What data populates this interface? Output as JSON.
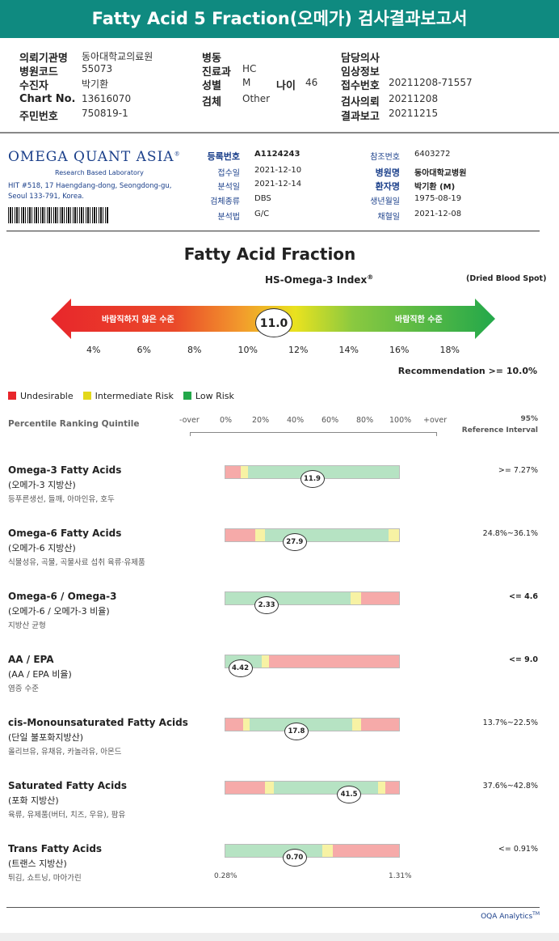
{
  "header": {
    "title": "Fatty Acid 5 Fraction(오메가) 검사결과보고서"
  },
  "patient_info": {
    "col1": [
      {
        "label": "의뢰기관명",
        "value": "동아대학교의료원"
      },
      {
        "label": "병원코드",
        "value": "55073"
      },
      {
        "label": "수진자",
        "value": "박기환"
      },
      {
        "label": "Chart No.",
        "value": "13616070"
      },
      {
        "label": "주민번호",
        "value": "750819-1"
      }
    ],
    "col2": [
      {
        "label": "병동",
        "value": ""
      },
      {
        "label": "진료과",
        "value": "HC"
      },
      {
        "label": "성별",
        "value": "M"
      },
      {
        "label": "검체",
        "value": "Other"
      }
    ],
    "age_label": "나이",
    "age_value": "46",
    "col3": [
      {
        "label": "담당의사",
        "value": ""
      },
      {
        "label": "임상정보",
        "value": ""
      },
      {
        "label": "접수번호",
        "value": "20211208-71557"
      },
      {
        "label": "검사의뢰",
        "value": "20211208"
      },
      {
        "label": "결과보고",
        "value": "20211215"
      }
    ]
  },
  "lab": {
    "logo_text": "OMEGA QUANT ASIA",
    "logo_mark": "®",
    "logo_sub": "Research Based Laboratory",
    "address": "HIT #518, 17 Haengdang-dong, Seongdong-gu, Seoul 133-791, Korea."
  },
  "sample_info": {
    "left": [
      {
        "label": "등록번호",
        "value": "A1124243"
      },
      {
        "label": "접수일",
        "value": "2021-12-10"
      },
      {
        "label": "분석일",
        "value": "2021-12-14"
      },
      {
        "label": "검체종류",
        "value": "DBS"
      },
      {
        "label": "분석법",
        "value": "G/C"
      }
    ],
    "right": [
      {
        "label": "참조번호",
        "value": "6403272"
      },
      {
        "label": "병원명",
        "value": "동아대학교병원"
      },
      {
        "label": "환자명",
        "value": "박기환 (M)"
      },
      {
        "label": "생년월일",
        "value": "1975-08-19"
      },
      {
        "label": "채혈일",
        "value": "2021-12-08"
      }
    ]
  },
  "fraction": {
    "title": "Fatty Acid Fraction",
    "index_label": "HS-Omega-3 Index",
    "index_mark": "®",
    "specimen": "(Dried Blood Spot)",
    "low_label": "바람직하지 않은 수준",
    "high_label": "바람직한 수준",
    "value": 11.0,
    "value_text": "11.0",
    "ticks": [
      "4%",
      "6%",
      "8%",
      "10%",
      "12%",
      "14%",
      "16%",
      "18%"
    ],
    "recommendation": "Recommendation  >= 10.0%"
  },
  "legend": [
    {
      "label": "Undesirable",
      "color": "#e8262b"
    },
    {
      "label": "Intermediate Risk",
      "color": "#e3d81a"
    },
    {
      "label": "Low Risk",
      "color": "#23a84a"
    }
  ],
  "percentile": {
    "label": "Percentile Ranking Quintile",
    "ticks": [
      "-over",
      "0%",
      "20%",
      "40%",
      "60%",
      "80%",
      "100%",
      "+over"
    ],
    "ref_header_1": "95%",
    "ref_header_2": "Reference Interval"
  },
  "rows": [
    {
      "en": "Omega-3 Fatty Acids",
      "ko": "(오메가-3 지방산)",
      "foods": "등푸른생선, 들깨, 아마인유, 호두",
      "value_text": "11.9",
      "marker_pct": 0.5,
      "ref": ">= 7.27%",
      "ref_bold": false,
      "segments": [
        {
          "w": 0.09,
          "c": "#f6aaa9"
        },
        {
          "w": 0.04,
          "c": "#f7f2a4"
        },
        {
          "w": 0.87,
          "c": "#b6e3c3"
        }
      ]
    },
    {
      "en": "Omega-6 Fatty Acids",
      "ko": "(오메가-6 지방산)",
      "foods": "식물성유, 곡물, 곡물사료 섭취 육류·유제품",
      "value_text": "27.9",
      "marker_pct": 0.4,
      "ref": "24.8%~36.1%",
      "ref_bold": false,
      "segments": [
        {
          "w": 0.17,
          "c": "#f6aaa9"
        },
        {
          "w": 0.06,
          "c": "#f7f2a4"
        },
        {
          "w": 0.71,
          "c": "#b6e3c3"
        },
        {
          "w": 0.06,
          "c": "#f7f2a4"
        }
      ]
    },
    {
      "en": "Omega-6 / Omega-3",
      "ko": "(오메가-6 / 오메가-3 비율)",
      "foods": "지방산 균형",
      "value_text": "2.33",
      "marker_pct": 0.24,
      "ref": "<= 4.6",
      "ref_bold": true,
      "segments": [
        {
          "w": 0.72,
          "c": "#b6e3c3"
        },
        {
          "w": 0.06,
          "c": "#f7f2a4"
        },
        {
          "w": 0.22,
          "c": "#f6aaa9"
        }
      ]
    },
    {
      "en": "AA / EPA",
      "ko": "(AA / EPA 비율)",
      "foods": "염증 수준",
      "value_text": "4.42",
      "marker_pct": 0.09,
      "ref": "<= 9.0",
      "ref_bold": true,
      "segments": [
        {
          "w": 0.21,
          "c": "#b6e3c3"
        },
        {
          "w": 0.04,
          "c": "#f7f2a4"
        },
        {
          "w": 0.75,
          "c": "#f6aaa9"
        }
      ]
    },
    {
      "en": "cis-Monounsaturated Fatty Acids",
      "ko": "(단일 불포화지방산)",
      "foods": "올리브유, 유채유, 카놀라유, 아몬드",
      "value_text": "17.8",
      "marker_pct": 0.41,
      "ref": "13.7%~22.5%",
      "ref_bold": false,
      "segments": [
        {
          "w": 0.1,
          "c": "#f6aaa9"
        },
        {
          "w": 0.04,
          "c": "#f7f2a4"
        },
        {
          "w": 0.59,
          "c": "#b6e3c3"
        },
        {
          "w": 0.05,
          "c": "#f7f2a4"
        },
        {
          "w": 0.22,
          "c": "#f6aaa9"
        }
      ]
    },
    {
      "en": "Saturated Fatty Acids",
      "ko": "(포화 지방산)",
      "foods": "육류, 유제품(버터, 치즈, 우유), 팜유",
      "value_text": "41.5",
      "marker_pct": 0.71,
      "ref": "37.6%~42.8%",
      "ref_bold": false,
      "segments": [
        {
          "w": 0.23,
          "c": "#f6aaa9"
        },
        {
          "w": 0.05,
          "c": "#f7f2a4"
        },
        {
          "w": 0.6,
          "c": "#b6e3c3"
        },
        {
          "w": 0.04,
          "c": "#f7f2a4"
        },
        {
          "w": 0.08,
          "c": "#f6aaa9"
        }
      ]
    },
    {
      "en": "Trans Fatty Acids",
      "ko": "(트랜스 지방산)",
      "foods": "튀김, 쇼트닝, 마아가린",
      "value_text": "0.70",
      "marker_pct": 0.4,
      "ref": "<= 0.91%",
      "ref_bold": false,
      "segments": [
        {
          "w": 0.56,
          "c": "#b6e3c3"
        },
        {
          "w": 0.06,
          "c": "#f7f2a4"
        },
        {
          "w": 0.38,
          "c": "#f6aaa9"
        }
      ]
    }
  ],
  "trans_range": {
    "min": "0.28%",
    "max": "1.31%"
  },
  "footer": {
    "text": "OQA Analytics",
    "mark": "TM"
  }
}
